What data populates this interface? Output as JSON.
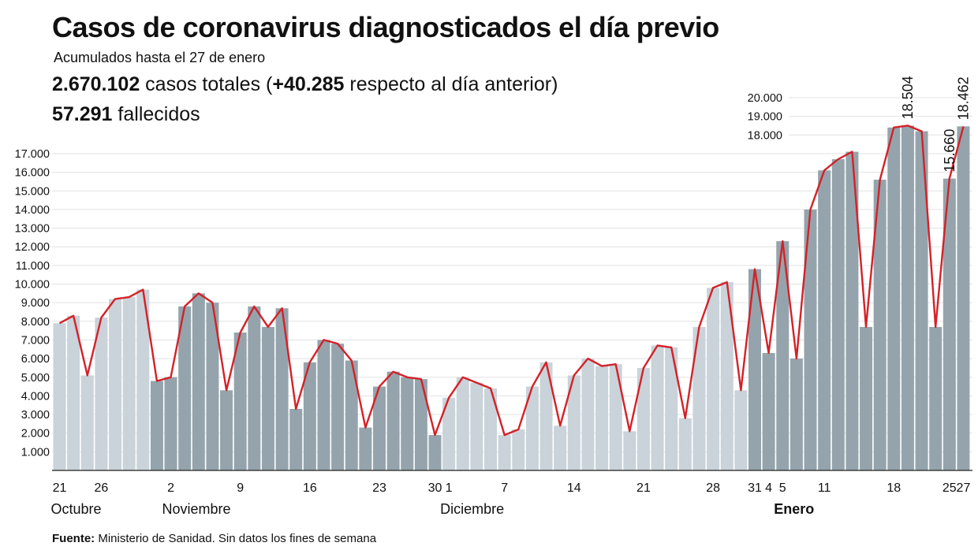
{
  "header": {
    "title": "Casos de coronavirus diagnosticados el día previo",
    "subtitle": "Acumulados hasta el 27 de enero",
    "total_value": "2.670.102",
    "total_text": " casos totales (",
    "delta_value": "+40.285",
    "delta_text": " respecto al día anterior)",
    "deaths_value": "57.291",
    "deaths_text": " fallecidos"
  },
  "footer": {
    "source_label": "Fuente:",
    "source_text": " Ministerio de Sanidad. Sin datos los fines de semana"
  },
  "colors": {
    "bar_light": "#c9d3d9",
    "bar_dark": "#95a4ac",
    "line": "#d42128",
    "grid": "#e2e2e2",
    "axis": "#222222"
  },
  "chart_data": {
    "type": "bar",
    "title": "Casos de coronavirus diagnosticados el día previo",
    "ylim": [
      0,
      20000
    ],
    "grid": true,
    "y_ticks": [
      {
        "v": 1000,
        "label": "1.000"
      },
      {
        "v": 2000,
        "label": "2.000"
      },
      {
        "v": 3000,
        "label": "3.000"
      },
      {
        "v": 4000,
        "label": "4.000"
      },
      {
        "v": 5000,
        "label": "5.000"
      },
      {
        "v": 6000,
        "label": "6.000"
      },
      {
        "v": 7000,
        "label": "7.000"
      },
      {
        "v": 8000,
        "label": "8.000"
      },
      {
        "v": 9000,
        "label": "9.000"
      },
      {
        "v": 10000,
        "label": "10.000"
      },
      {
        "v": 11000,
        "label": "11.000"
      },
      {
        "v": 12000,
        "label": "12.000"
      },
      {
        "v": 13000,
        "label": "13.000"
      },
      {
        "v": 14000,
        "label": "14.000"
      },
      {
        "v": 15000,
        "label": "15.000"
      },
      {
        "v": 16000,
        "label": "16.000"
      },
      {
        "v": 17000,
        "label": "17.000"
      },
      {
        "v": 18000,
        "label": "18.000"
      },
      {
        "v": 19000,
        "label": "19.000"
      },
      {
        "v": 20000,
        "label": "20.000"
      }
    ],
    "values": [
      7900,
      8300,
      5100,
      8200,
      9200,
      9300,
      9700,
      4800,
      5000,
      8800,
      9500,
      9000,
      4300,
      7400,
      8800,
      7700,
      8700,
      3300,
      5800,
      7000,
      6800,
      5900,
      2300,
      4500,
      5300,
      5000,
      4900,
      1900,
      3900,
      5000,
      4700,
      4400,
      1900,
      2200,
      4500,
      5800,
      2400,
      5100,
      6000,
      5600,
      5700,
      2100,
      5500,
      6700,
      6600,
      2800,
      7700,
      9800,
      10100,
      4300,
      10800,
      6300,
      12300,
      6000,
      14000,
      16100,
      16700,
      17100,
      7700,
      15600,
      18400,
      18504,
      18200,
      7700,
      15660,
      18462
    ],
    "x_ticks": [
      {
        "i": 0,
        "label": "21"
      },
      {
        "i": 3,
        "label": "26"
      },
      {
        "i": 8,
        "label": "2"
      },
      {
        "i": 13,
        "label": "9"
      },
      {
        "i": 18,
        "label": "16"
      },
      {
        "i": 23,
        "label": "23"
      },
      {
        "i": 27,
        "label": "30"
      },
      {
        "i": 28,
        "label": "1"
      },
      {
        "i": 32,
        "label": "7"
      },
      {
        "i": 37,
        "label": "14"
      },
      {
        "i": 42,
        "label": "21"
      },
      {
        "i": 47,
        "label": "28"
      },
      {
        "i": 50,
        "label": "31"
      },
      {
        "i": 51,
        "label": "4"
      },
      {
        "i": 52,
        "label": "5"
      },
      {
        "i": 55,
        "label": "11"
      },
      {
        "i": 60,
        "label": "18"
      },
      {
        "i": 64,
        "label": "25"
      },
      {
        "i": 65,
        "label": "27"
      }
    ],
    "months": [
      {
        "i": 0,
        "label": "Octubre",
        "bold": false
      },
      {
        "i": 8,
        "label": "Noviembre",
        "bold": false
      },
      {
        "i": 28,
        "label": "Diciembre",
        "bold": false
      },
      {
        "i": 52,
        "label": "Enero",
        "bold": true
      }
    ],
    "shading_groups": [
      {
        "from": 0,
        "to": 6,
        "dark": false
      },
      {
        "from": 7,
        "to": 27,
        "dark": true
      },
      {
        "from": 28,
        "to": 49,
        "dark": false
      },
      {
        "from": 50,
        "to": 65,
        "dark": true
      }
    ],
    "data_labels": [
      {
        "i": 61,
        "label": "18.504"
      },
      {
        "i": 64,
        "label": "15.660"
      },
      {
        "i": 65,
        "label": "18.462"
      }
    ]
  }
}
